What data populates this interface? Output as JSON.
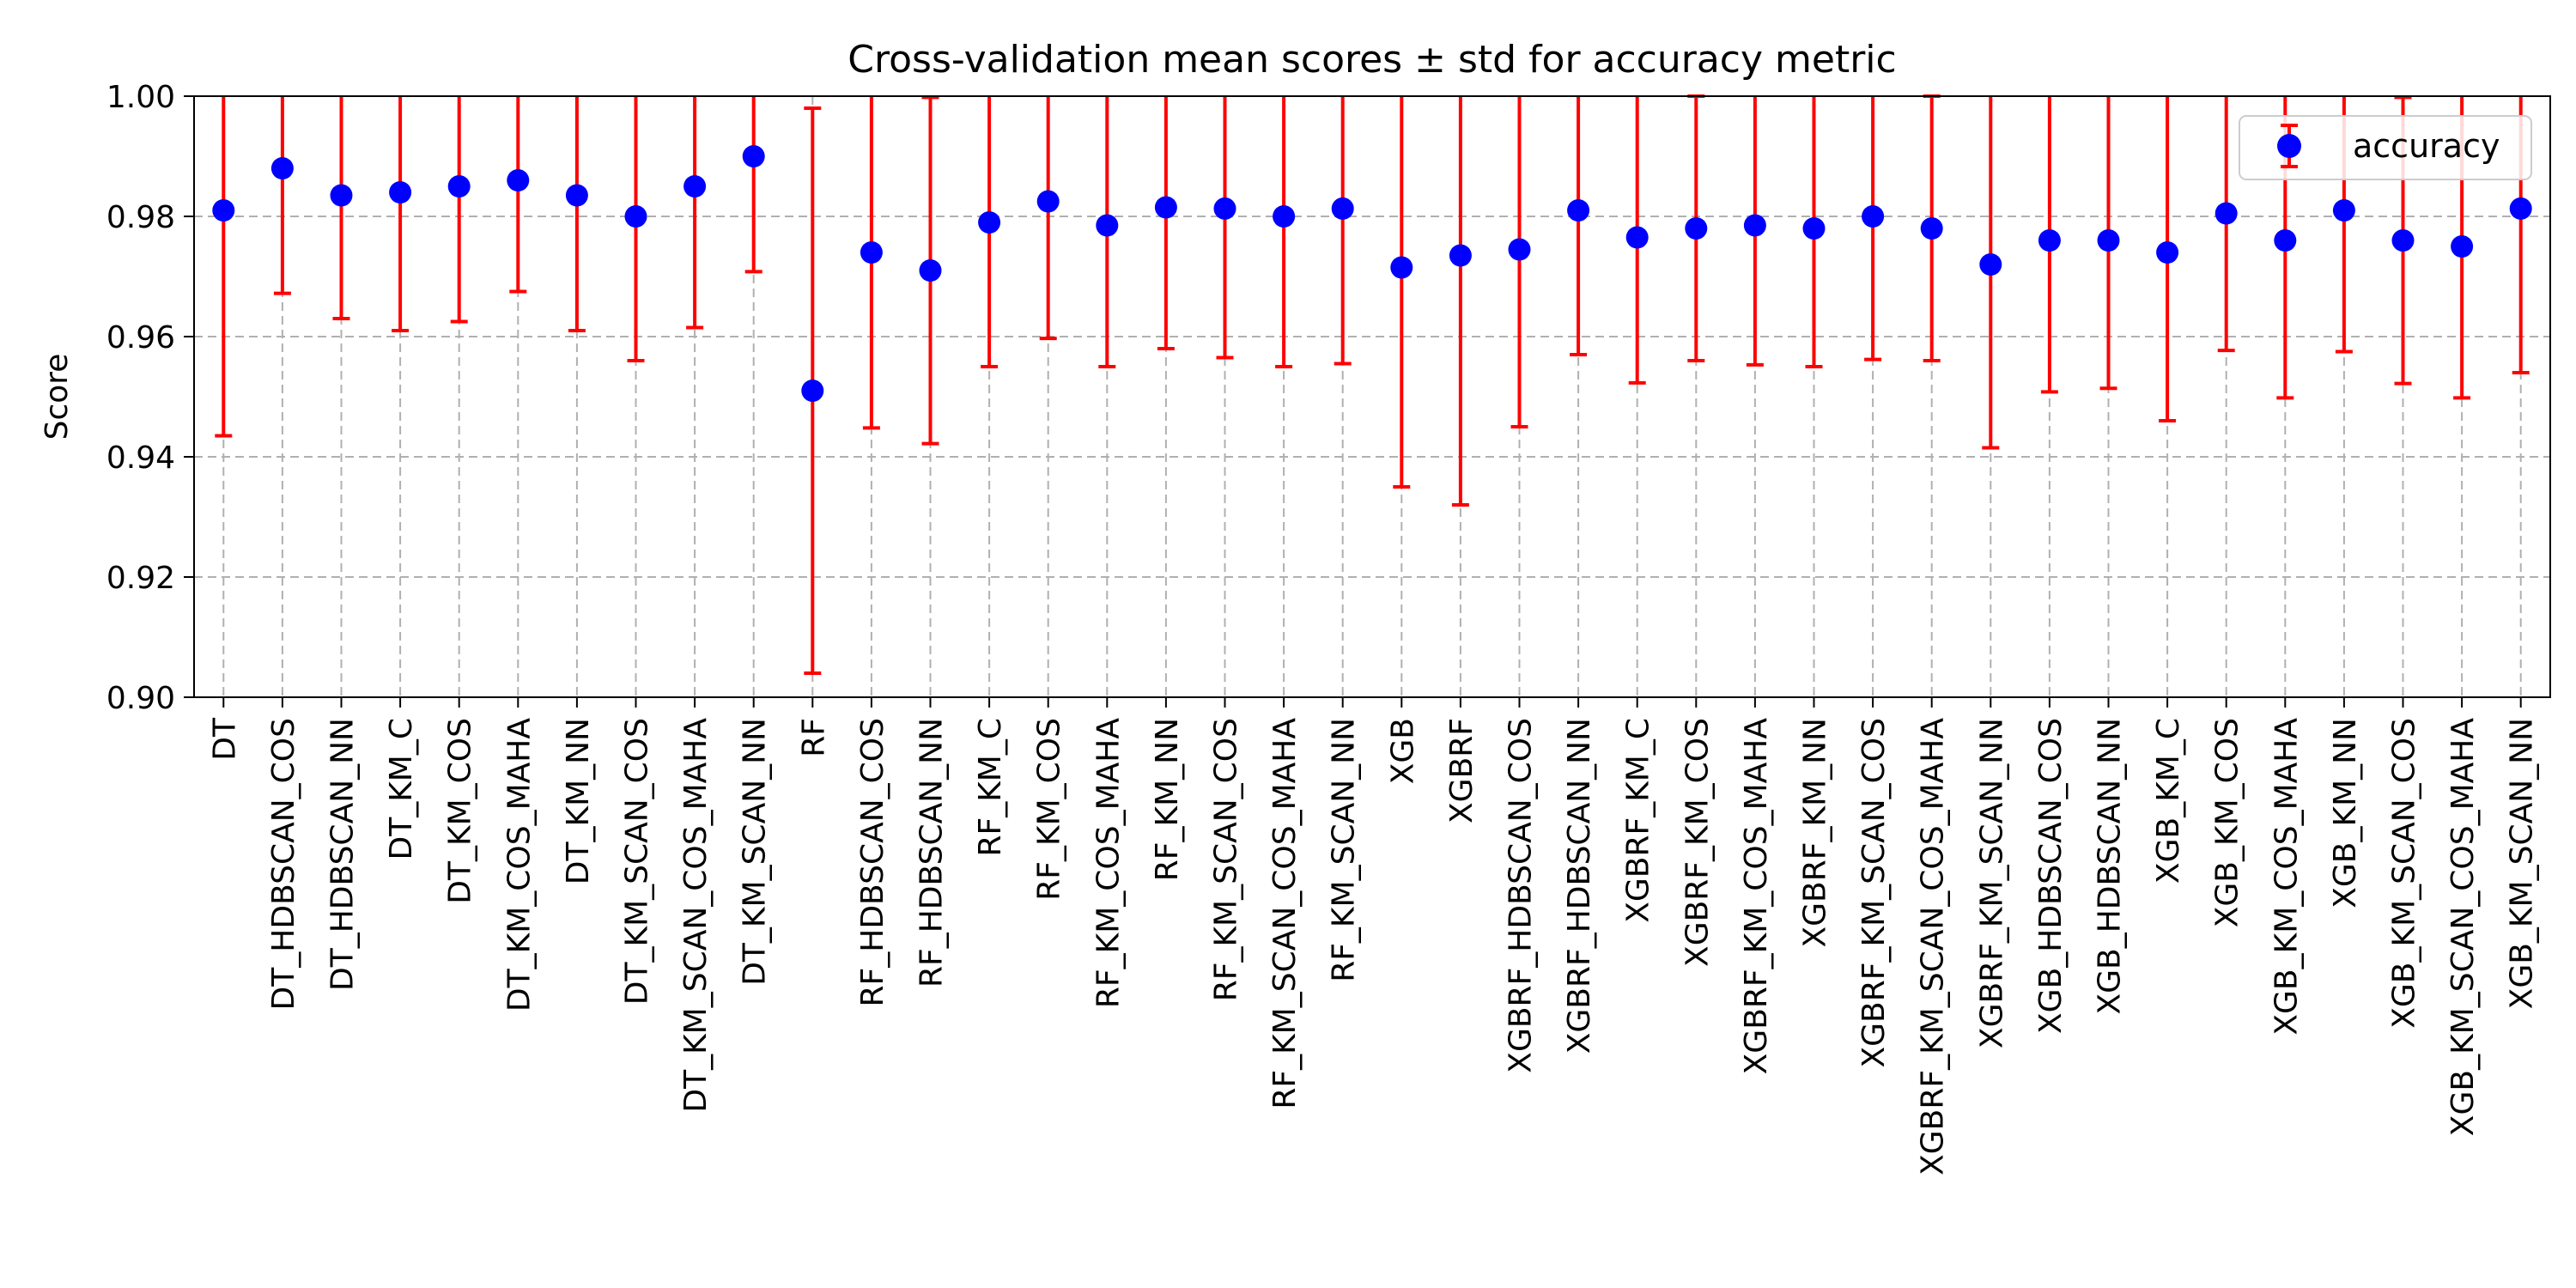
{
  "chart_data": {
    "type": "errorbar",
    "title": "Cross-validation mean scores ± std for accuracy metric",
    "xlabel": "",
    "ylabel": "Score",
    "ylim": [
      0.9,
      1.0
    ],
    "yticks": [
      "0.90",
      "0.92",
      "0.94",
      "0.96",
      "0.98",
      "1.00"
    ],
    "ytick_values": [
      0.9,
      0.92,
      0.94,
      0.96,
      0.98,
      1.0
    ],
    "grid": true,
    "legend": {
      "placement": "top-right",
      "entries": [
        "accuracy"
      ]
    },
    "colors": {
      "marker": "#0000ff",
      "errorbar": "#ff0000",
      "grid": "#b0b0b0"
    },
    "series": [
      {
        "name": "accuracy"
      }
    ],
    "categories": [
      "DT",
      "DT_HDBSCAN_COS",
      "DT_HDBSCAN_NN",
      "DT_KM_C",
      "DT_KM_COS",
      "DT_KM_COS_MAHA",
      "DT_KM_NN",
      "DT_KM_SCAN_COS",
      "DT_KM_SCAN_COS_MAHA",
      "DT_KM_SCAN_NN",
      "RF",
      "RF_HDBSCAN_COS",
      "RF_HDBSCAN_NN",
      "RF_KM_C",
      "RF_KM_COS",
      "RF_KM_COS_MAHA",
      "RF_KM_NN",
      "RF_KM_SCAN_COS",
      "RF_KM_SCAN_COS_MAHA",
      "RF_KM_SCAN_NN",
      "XGB",
      "XGBRF",
      "XGBRF_HDBSCAN_COS",
      "XGBRF_HDBSCAN_NN",
      "XGBRF_KM_C",
      "XGBRF_KM_COS",
      "XGBRF_KM_COS_MAHA",
      "XGBRF_KM_NN",
      "XGBRF_KM_SCAN_COS",
      "XGBRF_KM_SCAN_COS_MAHA",
      "XGBRF_KM_SCAN_NN",
      "XGB_HDBSCAN_COS",
      "XGB_HDBSCAN_NN",
      "XGB_KM_C",
      "XGB_KM_COS",
      "XGB_KM_COS_MAHA",
      "XGB_KM_NN",
      "XGB_KM_SCAN_COS",
      "XGB_KM_SCAN_COS_MAHA",
      "XGB_KM_SCAN_NN"
    ],
    "values": [
      0.981,
      0.988,
      0.9835,
      0.984,
      0.985,
      0.986,
      0.9835,
      0.98,
      0.985,
      0.99,
      0.951,
      0.974,
      0.971,
      0.979,
      0.9825,
      0.9785,
      0.9815,
      0.9813,
      0.98,
      0.9813,
      0.9715,
      0.9735,
      0.9745,
      0.981,
      0.9765,
      0.978,
      0.9785,
      0.978,
      0.98,
      0.978,
      0.972,
      0.976,
      0.976,
      0.974,
      0.9805,
      0.976,
      0.981,
      0.976,
      0.975,
      0.9813
    ],
    "std": [
      0.0375,
      0.0208,
      0.0205,
      0.023,
      0.0225,
      0.0185,
      0.0225,
      0.024,
      0.0235,
      0.0192,
      0.047,
      0.0292,
      0.0288,
      0.024,
      0.0228,
      0.0235,
      0.0235,
      0.0248,
      0.025,
      0.0258,
      0.0365,
      0.0415,
      0.0295,
      0.024,
      0.0242,
      0.022,
      0.0232,
      0.023,
      0.0238,
      0.022,
      0.0305,
      0.0252,
      0.0246,
      0.028,
      0.0228,
      0.0262,
      0.0235,
      0.0238,
      0.0252,
      0.0273
    ]
  }
}
